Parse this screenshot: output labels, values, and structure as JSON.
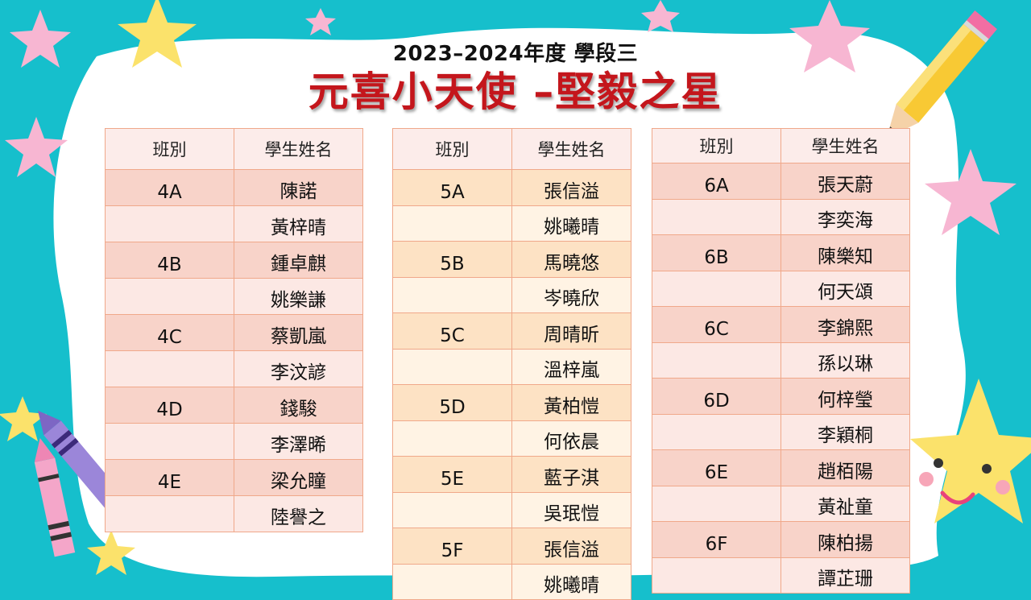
{
  "header": {
    "subtitle": "2023–2024年度 學段三",
    "title": "元喜小天使 –堅毅之星"
  },
  "columns": {
    "class_label": "班別",
    "name_label": "學生姓名"
  },
  "grade4": [
    {
      "class": "4A",
      "name": "陳諾"
    },
    {
      "class": "",
      "name": "黃梓晴"
    },
    {
      "class": "4B",
      "name": "鍾卓麒"
    },
    {
      "class": "",
      "name": "姚樂謙"
    },
    {
      "class": "4C",
      "name": "蔡凱嵐"
    },
    {
      "class": "",
      "name": "李汶諺"
    },
    {
      "class": "4D",
      "name": "錢駿"
    },
    {
      "class": "",
      "name": "李澤晞"
    },
    {
      "class": "4E",
      "name": "梁允瞳"
    },
    {
      "class": "",
      "name": "陸譽之"
    }
  ],
  "grade5": [
    {
      "class": "5A",
      "name": "張信溢"
    },
    {
      "class": "",
      "name": "姚曦晴"
    },
    {
      "class": "5B",
      "name": "馬曉悠"
    },
    {
      "class": "",
      "name": "岑曉欣"
    },
    {
      "class": "5C",
      "name": "周晴昕"
    },
    {
      "class": "",
      "name": "溫梓嵐"
    },
    {
      "class": "5D",
      "name": "黃柏愷"
    },
    {
      "class": "",
      "name": "何依晨"
    },
    {
      "class": "5E",
      "name": "藍子淇"
    },
    {
      "class": "",
      "name": "吳珉愷"
    },
    {
      "class": "5F",
      "name": "張信溢"
    },
    {
      "class": "",
      "name": "姚曦晴"
    }
  ],
  "grade6": [
    {
      "class": "6A",
      "name": "張天蔚"
    },
    {
      "class": "",
      "name": "李奕海"
    },
    {
      "class": "6B",
      "name": "陳樂知"
    },
    {
      "class": "",
      "name": "何天頌"
    },
    {
      "class": "6C",
      "name": "李錦熙"
    },
    {
      "class": "",
      "name": "孫以琳"
    },
    {
      "class": "6D",
      "name": "何梓瑩"
    },
    {
      "class": "",
      "name": "李穎桐"
    },
    {
      "class": "6E",
      "name": "趙栢陽"
    },
    {
      "class": "",
      "name": "黃祉童"
    },
    {
      "class": "6F",
      "name": "陳柏揚"
    },
    {
      "class": "",
      "name": "譚芷珊"
    }
  ],
  "decor": {
    "background_color": "#16bfcc",
    "paper_color": "#ffffff",
    "title_color": "#c4161c",
    "star_pink": "#f7b6d2",
    "star_yellow": "#fbe26b",
    "icons": [
      "pink-star-icon",
      "yellow-star-icon",
      "pencil-icon",
      "crayon-icon",
      "smiling-star-icon"
    ]
  }
}
